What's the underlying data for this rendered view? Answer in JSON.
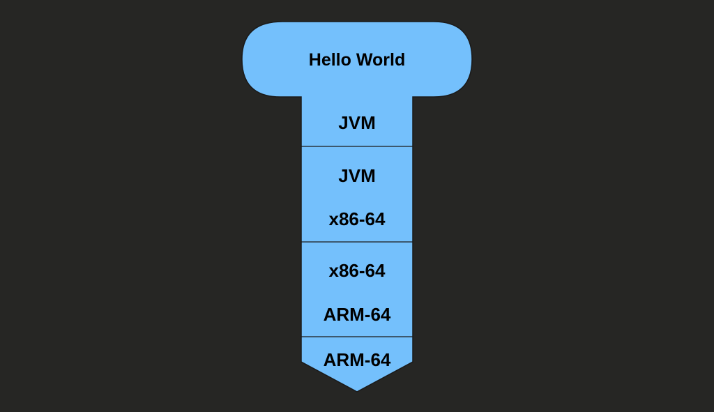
{
  "diagram": {
    "colors": {
      "background": "#262624",
      "fill": "#74C0FC",
      "stroke": "#1a1a1a",
      "text": "#000000"
    },
    "head": {
      "label": "Hello World"
    },
    "layers": [
      {
        "lines": [
          "JVM"
        ]
      },
      {
        "lines": [
          "JVM",
          "x86-64"
        ]
      },
      {
        "lines": [
          "x86-64",
          "ARM-64"
        ]
      },
      {
        "lines": [
          "ARM-64"
        ]
      }
    ]
  }
}
